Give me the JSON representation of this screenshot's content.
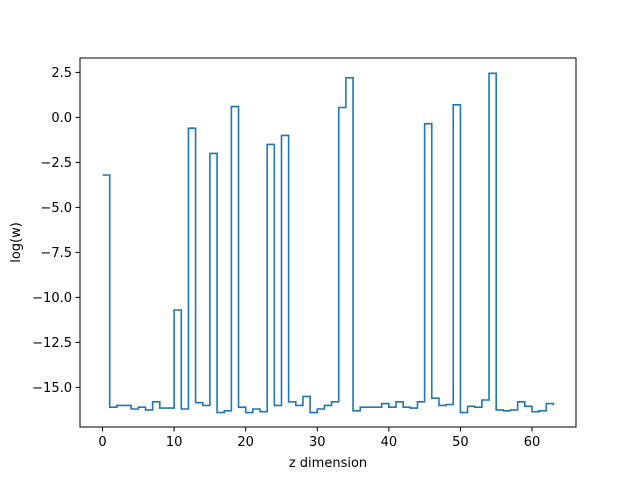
{
  "chart_data": {
    "type": "line",
    "drawstyle": "steps-post",
    "xlabel": "z dimension",
    "ylabel": "log(w)",
    "xlim": [
      -3.15,
      66.15
    ],
    "ylim": [
      -17.2,
      3.3
    ],
    "x_ticks": [
      0,
      10,
      20,
      30,
      40,
      50,
      60
    ],
    "y_ticks": [
      2.5,
      0.0,
      -2.5,
      -5.0,
      -7.5,
      -10.0,
      -12.5,
      -15.0
    ],
    "x_tick_labels": [
      "0",
      "10",
      "20",
      "30",
      "40",
      "50",
      "60"
    ],
    "y_tick_labels": [
      "2.5",
      "0.0",
      "−2.5",
      "−5.0",
      "−7.5",
      "−10.0",
      "−12.5",
      "−15.0"
    ],
    "grid": false,
    "series": [
      {
        "color": "#1f77b4",
        "x": [
          0,
          1,
          2,
          3,
          4,
          5,
          6,
          7,
          8,
          9,
          10,
          11,
          12,
          13,
          14,
          15,
          16,
          17,
          18,
          19,
          20,
          21,
          22,
          23,
          24,
          25,
          26,
          27,
          28,
          29,
          30,
          31,
          32,
          33,
          34,
          35,
          36,
          37,
          38,
          39,
          40,
          41,
          42,
          43,
          44,
          45,
          46,
          47,
          48,
          49,
          50,
          51,
          52,
          53,
          54,
          55,
          56,
          57,
          58,
          59,
          60,
          61,
          62,
          63
        ],
        "y": [
          -3.2,
          -16.1,
          -16.0,
          -16.0,
          -16.2,
          -16.1,
          -16.25,
          -15.8,
          -16.15,
          -16.15,
          -10.7,
          -16.2,
          -0.6,
          -15.85,
          -16.0,
          -2.0,
          -16.4,
          -16.3,
          0.6,
          -16.1,
          -16.4,
          -16.2,
          -16.35,
          -1.5,
          -16.0,
          -1.0,
          -15.8,
          -16.0,
          -15.5,
          -16.4,
          -16.2,
          -16.0,
          -15.8,
          0.55,
          2.2,
          -16.3,
          -16.1,
          -16.1,
          -16.1,
          -15.9,
          -16.1,
          -15.8,
          -16.1,
          -16.15,
          -15.8,
          -0.35,
          -15.6,
          -16.0,
          -15.95,
          0.7,
          -16.4,
          -16.05,
          -16.1,
          -15.7,
          2.45,
          -16.25,
          -16.3,
          -16.25,
          -15.8,
          -16.05,
          -16.35,
          -16.3,
          -15.9,
          -16.0
        ]
      }
    ]
  }
}
